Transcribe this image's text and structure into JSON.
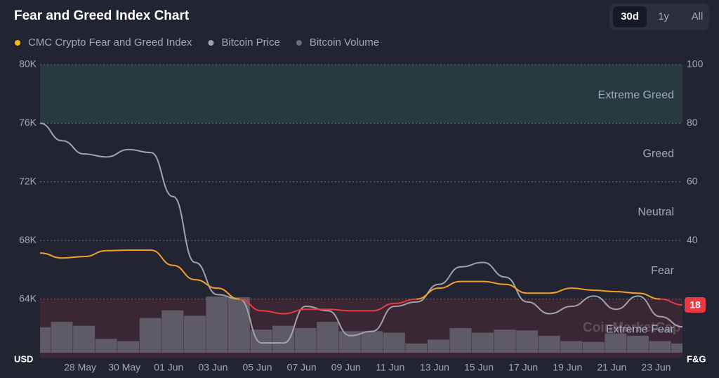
{
  "chart_data": {
    "type": "line",
    "title": "Fear and Greed Index Chart",
    "ranges": [
      "30d",
      "1y",
      "All"
    ],
    "selected_range": "30d",
    "categories": [
      null,
      null,
      "28 May",
      null,
      "30 May",
      null,
      "01 Jun",
      null,
      "03 Jun",
      null,
      "05 Jun",
      null,
      "07 Jun",
      null,
      "09 Jun",
      null,
      "11 Jun",
      null,
      "13 Jun",
      null,
      "15 Jun",
      null,
      "17 Jun",
      null,
      "19 Jun",
      null,
      "21 Jun",
      null,
      "23 Jun",
      null
    ],
    "series": [
      {
        "name": "CMC Crypto Fear and Greed Index",
        "color": "#f3a02b",
        "low_color": "#ea3943",
        "axis": "y2",
        "values": [
          35.7,
          34,
          34.5,
          36.5,
          36.7,
          36.7,
          31.5,
          26.6,
          23.7,
          20,
          16,
          15,
          16.5,
          16.5,
          16,
          16,
          18.5,
          20,
          23.7,
          26,
          26,
          25,
          22,
          22,
          23.7,
          23,
          22.5,
          22,
          20,
          18
        ]
      },
      {
        "name": "Bitcoin Price",
        "color": "#a0a3ad",
        "values": [
          76000,
          74800,
          73900,
          73700,
          74200,
          74000,
          71000,
          66500,
          64300,
          64000,
          61000,
          61000,
          63500,
          63200,
          61500,
          61800,
          63500,
          63800,
          65000,
          66200,
          66500,
          65500,
          63800,
          63000,
          63500,
          64200,
          63300,
          64200,
          62800,
          62100
        ]
      },
      {
        "name": "Bitcoin Volume",
        "color": "#6b6e78",
        "type": "bar",
        "values": [
          33,
          40,
          35,
          18,
          15,
          45,
          55,
          48,
          73,
          72,
          30,
          35,
          32,
          40,
          28,
          28,
          26,
          12,
          17,
          32,
          26,
          30,
          29,
          22,
          15,
          14,
          25,
          22,
          15,
          12
        ]
      }
    ],
    "current_value": "18",
    "ylim": [
      60000,
      80000
    ],
    "yticks": [
      {
        "value": 64000,
        "label": "64K"
      },
      {
        "value": 68000,
        "label": "68K"
      },
      {
        "value": 72000,
        "label": "72K"
      },
      {
        "value": 76000,
        "label": "76K"
      },
      {
        "value": 80000,
        "label": "80K"
      }
    ],
    "y2lim": [
      0,
      100
    ],
    "y2ticks": [
      40,
      60,
      80,
      100
    ],
    "ylabel": "USD",
    "y2label": "F&G",
    "zones": [
      {
        "label": "Extreme Greed",
        "from": 80,
        "to": 100,
        "color": "#263a3f"
      },
      {
        "label": "Greed",
        "from": 60,
        "to": 80
      },
      {
        "label": "Neutral",
        "from": 40,
        "to": 60
      },
      {
        "label": "Fear",
        "from": 20,
        "to": 40
      },
      {
        "label": "Extreme Fear",
        "from": 0,
        "to": 20,
        "color": "#3a2733"
      }
    ],
    "watermark": "CoinMarketCap",
    "grid": true
  }
}
